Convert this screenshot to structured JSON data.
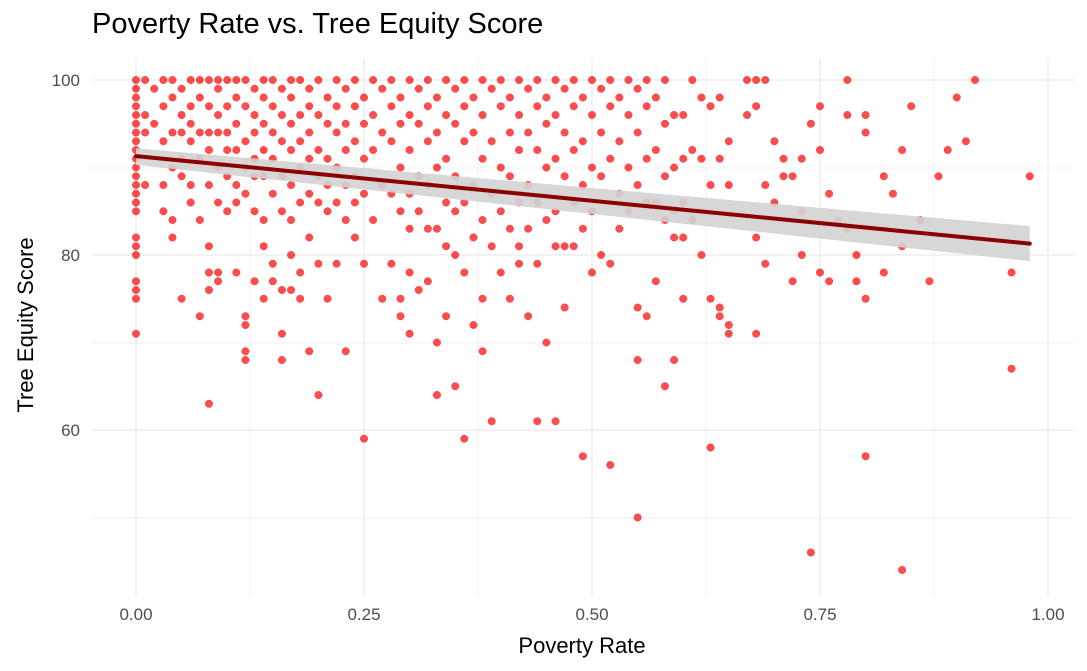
{
  "chart_data": {
    "type": "scatter",
    "title": "Poverty Rate vs. Tree Equity Score",
    "xlabel": "Poverty Rate",
    "ylabel": "Tree Equity Score",
    "xlim": [
      -0.1,
      1.06
    ],
    "ylim": [
      41.5,
      102.5
    ],
    "x_ticks": [
      "0.00",
      "0.25",
      "0.50",
      "0.75",
      "1.00"
    ],
    "y_ticks": [
      "60",
      "80",
      "100"
    ],
    "grid": true,
    "point_color": "#ff0000",
    "trend": {
      "method": "linear",
      "color": "#8b0000",
      "band_color": "#d3d3d3",
      "start": {
        "x": 0.0,
        "y": 91.3,
        "lo": 90.3,
        "hi": 92.2
      },
      "end": {
        "x": 0.98,
        "y": 81.3,
        "lo": 79.3,
        "hi": 83.3
      }
    },
    "points": [
      [
        0,
        100
      ],
      [
        0,
        99
      ],
      [
        0,
        98
      ],
      [
        0,
        97
      ],
      [
        0,
        96
      ],
      [
        0,
        95
      ],
      [
        0,
        94
      ],
      [
        0,
        93
      ],
      [
        0,
        92
      ],
      [
        0,
        91
      ],
      [
        0,
        90
      ],
      [
        0,
        89
      ],
      [
        0,
        88
      ],
      [
        0,
        87
      ],
      [
        0,
        86
      ],
      [
        0,
        85
      ],
      [
        0,
        82
      ],
      [
        0,
        81
      ],
      [
        0,
        80
      ],
      [
        0,
        77
      ],
      [
        0,
        76
      ],
      [
        0,
        75
      ],
      [
        0,
        71
      ],
      [
        0.01,
        100
      ],
      [
        0.01,
        96
      ],
      [
        0.01,
        94
      ],
      [
        0.01,
        88
      ],
      [
        0.02,
        99
      ],
      [
        0.02,
        95
      ],
      [
        0.03,
        100
      ],
      [
        0.03,
        97
      ],
      [
        0.03,
        93
      ],
      [
        0.03,
        88
      ],
      [
        0.03,
        85
      ],
      [
        0.04,
        100
      ],
      [
        0.04,
        98
      ],
      [
        0.04,
        94
      ],
      [
        0.04,
        90
      ],
      [
        0.04,
        84
      ],
      [
        0.04,
        82
      ],
      [
        0.05,
        99
      ],
      [
        0.05,
        96
      ],
      [
        0.05,
        94
      ],
      [
        0.05,
        91
      ],
      [
        0.05,
        89
      ],
      [
        0.05,
        75
      ],
      [
        0.06,
        100
      ],
      [
        0.06,
        97
      ],
      [
        0.06,
        95
      ],
      [
        0.06,
        93
      ],
      [
        0.06,
        88
      ],
      [
        0.06,
        86
      ],
      [
        0.07,
        100
      ],
      [
        0.07,
        98
      ],
      [
        0.07,
        94
      ],
      [
        0.07,
        91
      ],
      [
        0.07,
        84
      ],
      [
        0.07,
        73
      ],
      [
        0.08,
        100
      ],
      [
        0.08,
        97
      ],
      [
        0.08,
        94
      ],
      [
        0.08,
        92
      ],
      [
        0.08,
        88
      ],
      [
        0.08,
        81
      ],
      [
        0.08,
        78
      ],
      [
        0.08,
        76
      ],
      [
        0.08,
        63
      ],
      [
        0.09,
        100
      ],
      [
        0.09,
        99
      ],
      [
        0.09,
        96
      ],
      [
        0.09,
        94
      ],
      [
        0.09,
        90
      ],
      [
        0.09,
        86
      ],
      [
        0.09,
        78
      ],
      [
        0.09,
        77
      ],
      [
        0.1,
        100
      ],
      [
        0.1,
        97
      ],
      [
        0.1,
        94
      ],
      [
        0.1,
        92
      ],
      [
        0.1,
        89
      ],
      [
        0.1,
        85
      ],
      [
        0.11,
        100
      ],
      [
        0.11,
        98
      ],
      [
        0.11,
        95
      ],
      [
        0.11,
        92
      ],
      [
        0.11,
        88
      ],
      [
        0.11,
        86
      ],
      [
        0.11,
        78
      ],
      [
        0.12,
        100
      ],
      [
        0.12,
        97
      ],
      [
        0.12,
        93
      ],
      [
        0.12,
        90
      ],
      [
        0.12,
        87
      ],
      [
        0.12,
        73
      ],
      [
        0.12,
        72
      ],
      [
        0.12,
        69
      ],
      [
        0.12,
        68
      ],
      [
        0.13,
        99
      ],
      [
        0.13,
        96
      ],
      [
        0.13,
        94
      ],
      [
        0.13,
        91
      ],
      [
        0.13,
        89
      ],
      [
        0.13,
        85
      ],
      [
        0.13,
        77
      ],
      [
        0.14,
        100
      ],
      [
        0.14,
        98
      ],
      [
        0.14,
        95
      ],
      [
        0.14,
        92
      ],
      [
        0.14,
        89
      ],
      [
        0.14,
        84
      ],
      [
        0.14,
        81
      ],
      [
        0.14,
        75
      ],
      [
        0.15,
        100
      ],
      [
        0.15,
        97
      ],
      [
        0.15,
        94
      ],
      [
        0.15,
        91
      ],
      [
        0.15,
        87
      ],
      [
        0.15,
        79
      ],
      [
        0.15,
        77
      ],
      [
        0.16,
        99
      ],
      [
        0.16,
        96
      ],
      [
        0.16,
        93
      ],
      [
        0.16,
        89
      ],
      [
        0.16,
        85
      ],
      [
        0.16,
        76
      ],
      [
        0.16,
        71
      ],
      [
        0.16,
        68
      ],
      [
        0.17,
        100
      ],
      [
        0.17,
        98
      ],
      [
        0.17,
        95
      ],
      [
        0.17,
        92
      ],
      [
        0.17,
        88
      ],
      [
        0.17,
        84
      ],
      [
        0.17,
        80
      ],
      [
        0.17,
        76
      ],
      [
        0.18,
        100
      ],
      [
        0.18,
        96
      ],
      [
        0.18,
        93
      ],
      [
        0.18,
        90
      ],
      [
        0.18,
        86
      ],
      [
        0.18,
        78
      ],
      [
        0.18,
        75
      ],
      [
        0.19,
        99
      ],
      [
        0.19,
        97
      ],
      [
        0.19,
        94
      ],
      [
        0.19,
        91
      ],
      [
        0.19,
        87
      ],
      [
        0.19,
        82
      ],
      [
        0.19,
        69
      ],
      [
        0.2,
        100
      ],
      [
        0.2,
        96
      ],
      [
        0.2,
        92
      ],
      [
        0.2,
        89
      ],
      [
        0.2,
        86
      ],
      [
        0.2,
        79
      ],
      [
        0.2,
        64
      ],
      [
        0.21,
        98
      ],
      [
        0.21,
        95
      ],
      [
        0.21,
        91
      ],
      [
        0.21,
        88
      ],
      [
        0.21,
        85
      ],
      [
        0.21,
        75
      ],
      [
        0.22,
        100
      ],
      [
        0.22,
        97
      ],
      [
        0.22,
        94
      ],
      [
        0.22,
        90
      ],
      [
        0.22,
        86
      ],
      [
        0.22,
        79
      ],
      [
        0.23,
        99
      ],
      [
        0.23,
        95
      ],
      [
        0.23,
        92
      ],
      [
        0.23,
        88
      ],
      [
        0.23,
        84
      ],
      [
        0.23,
        69
      ],
      [
        0.24,
        100
      ],
      [
        0.24,
        97
      ],
      [
        0.24,
        93
      ],
      [
        0.24,
        89
      ],
      [
        0.24,
        86
      ],
      [
        0.24,
        82
      ],
      [
        0.25,
        98
      ],
      [
        0.25,
        95
      ],
      [
        0.25,
        91
      ],
      [
        0.25,
        87
      ],
      [
        0.25,
        79
      ],
      [
        0.25,
        59
      ],
      [
        0.26,
        100
      ],
      [
        0.26,
        96
      ],
      [
        0.26,
        92
      ],
      [
        0.26,
        84
      ],
      [
        0.27,
        99
      ],
      [
        0.27,
        94
      ],
      [
        0.27,
        88
      ],
      [
        0.27,
        75
      ],
      [
        0.28,
        100
      ],
      [
        0.28,
        97
      ],
      [
        0.28,
        93
      ],
      [
        0.28,
        87
      ],
      [
        0.28,
        79
      ],
      [
        0.29,
        98
      ],
      [
        0.29,
        95
      ],
      [
        0.29,
        90
      ],
      [
        0.29,
        85
      ],
      [
        0.29,
        75
      ],
      [
        0.29,
        73
      ],
      [
        0.3,
        100
      ],
      [
        0.3,
        96
      ],
      [
        0.3,
        92
      ],
      [
        0.3,
        87
      ],
      [
        0.3,
        83
      ],
      [
        0.3,
        78
      ],
      [
        0.3,
        71
      ],
      [
        0.31,
        99
      ],
      [
        0.31,
        95
      ],
      [
        0.31,
        89
      ],
      [
        0.31,
        85
      ],
      [
        0.31,
        76
      ],
      [
        0.32,
        100
      ],
      [
        0.32,
        97
      ],
      [
        0.32,
        93
      ],
      [
        0.32,
        88
      ],
      [
        0.32,
        83
      ],
      [
        0.32,
        77
      ],
      [
        0.33,
        98
      ],
      [
        0.33,
        94
      ],
      [
        0.33,
        90
      ],
      [
        0.33,
        83
      ],
      [
        0.33,
        70
      ],
      [
        0.33,
        64
      ],
      [
        0.34,
        100
      ],
      [
        0.34,
        96
      ],
      [
        0.34,
        91
      ],
      [
        0.34,
        86
      ],
      [
        0.34,
        81
      ],
      [
        0.34,
        73
      ],
      [
        0.35,
        99
      ],
      [
        0.35,
        95
      ],
      [
        0.35,
        89
      ],
      [
        0.35,
        85
      ],
      [
        0.35,
        80
      ],
      [
        0.35,
        65
      ],
      [
        0.36,
        100
      ],
      [
        0.36,
        97
      ],
      [
        0.36,
        93
      ],
      [
        0.36,
        86
      ],
      [
        0.36,
        78
      ],
      [
        0.36,
        59
      ],
      [
        0.37,
        98
      ],
      [
        0.37,
        94
      ],
      [
        0.37,
        88
      ],
      [
        0.37,
        82
      ],
      [
        0.37,
        72
      ],
      [
        0.38,
        100
      ],
      [
        0.38,
        96
      ],
      [
        0.38,
        91
      ],
      [
        0.38,
        84
      ],
      [
        0.38,
        75
      ],
      [
        0.38,
        69
      ],
      [
        0.39,
        99
      ],
      [
        0.39,
        93
      ],
      [
        0.39,
        87
      ],
      [
        0.39,
        81
      ],
      [
        0.39,
        61
      ],
      [
        0.4,
        100
      ],
      [
        0.4,
        97
      ],
      [
        0.4,
        90
      ],
      [
        0.4,
        85
      ],
      [
        0.4,
        78
      ],
      [
        0.41,
        98
      ],
      [
        0.41,
        94
      ],
      [
        0.41,
        89
      ],
      [
        0.41,
        83
      ],
      [
        0.41,
        75
      ],
      [
        0.42,
        100
      ],
      [
        0.42,
        96
      ],
      [
        0.42,
        92
      ],
      [
        0.42,
        86
      ],
      [
        0.42,
        81
      ],
      [
        0.42,
        79
      ],
      [
        0.43,
        99
      ],
      [
        0.43,
        94
      ],
      [
        0.43,
        88
      ],
      [
        0.43,
        83
      ],
      [
        0.43,
        73
      ],
      [
        0.44,
        100
      ],
      [
        0.44,
        97
      ],
      [
        0.44,
        92
      ],
      [
        0.44,
        86
      ],
      [
        0.44,
        79
      ],
      [
        0.44,
        61
      ],
      [
        0.45,
        98
      ],
      [
        0.45,
        95
      ],
      [
        0.45,
        90
      ],
      [
        0.45,
        84
      ],
      [
        0.45,
        70
      ],
      [
        0.46,
        100
      ],
      [
        0.46,
        96
      ],
      [
        0.46,
        91
      ],
      [
        0.46,
        85
      ],
      [
        0.46,
        81
      ],
      [
        0.46,
        61
      ],
      [
        0.47,
        99
      ],
      [
        0.47,
        94
      ],
      [
        0.47,
        89
      ],
      [
        0.47,
        81
      ],
      [
        0.47,
        74
      ],
      [
        0.48,
        100
      ],
      [
        0.48,
        97
      ],
      [
        0.48,
        92
      ],
      [
        0.48,
        86
      ],
      [
        0.48,
        81
      ],
      [
        0.49,
        98
      ],
      [
        0.49,
        93
      ],
      [
        0.49,
        88
      ],
      [
        0.49,
        83
      ],
      [
        0.49,
        57
      ],
      [
        0.5,
        100
      ],
      [
        0.5,
        96
      ],
      [
        0.5,
        90
      ],
      [
        0.5,
        85
      ],
      [
        0.5,
        78
      ],
      [
        0.51,
        99
      ],
      [
        0.51,
        94
      ],
      [
        0.51,
        89
      ],
      [
        0.51,
        80
      ],
      [
        0.52,
        100
      ],
      [
        0.52,
        97
      ],
      [
        0.52,
        91
      ],
      [
        0.52,
        79
      ],
      [
        0.52,
        56
      ],
      [
        0.53,
        98
      ],
      [
        0.53,
        93
      ],
      [
        0.53,
        87
      ],
      [
        0.53,
        83
      ],
      [
        0.54,
        100
      ],
      [
        0.54,
        96
      ],
      [
        0.54,
        90
      ],
      [
        0.54,
        85
      ],
      [
        0.55,
        99
      ],
      [
        0.55,
        94
      ],
      [
        0.55,
        88
      ],
      [
        0.55,
        74
      ],
      [
        0.55,
        68
      ],
      [
        0.55,
        50
      ],
      [
        0.56,
        100
      ],
      [
        0.56,
        97
      ],
      [
        0.56,
        91
      ],
      [
        0.56,
        86
      ],
      [
        0.56,
        73
      ],
      [
        0.57,
        98
      ],
      [
        0.57,
        92
      ],
      [
        0.57,
        86
      ],
      [
        0.57,
        77
      ],
      [
        0.58,
        100
      ],
      [
        0.58,
        95
      ],
      [
        0.58,
        89
      ],
      [
        0.58,
        84
      ],
      [
        0.58,
        65
      ],
      [
        0.59,
        96
      ],
      [
        0.59,
        90
      ],
      [
        0.59,
        85
      ],
      [
        0.59,
        82
      ],
      [
        0.59,
        68
      ],
      [
        0.6,
        96
      ],
      [
        0.6,
        91
      ],
      [
        0.6,
        86
      ],
      [
        0.6,
        82
      ],
      [
        0.6,
        75
      ],
      [
        0.61,
        100
      ],
      [
        0.61,
        92
      ],
      [
        0.61,
        84
      ],
      [
        0.62,
        98
      ],
      [
        0.62,
        91
      ],
      [
        0.62,
        80
      ],
      [
        0.63,
        97
      ],
      [
        0.63,
        88
      ],
      [
        0.63,
        75
      ],
      [
        0.63,
        58
      ],
      [
        0.64,
        98
      ],
      [
        0.64,
        91
      ],
      [
        0.64,
        74
      ],
      [
        0.64,
        73
      ],
      [
        0.65,
        93
      ],
      [
        0.65,
        88
      ],
      [
        0.65,
        72
      ],
      [
        0.65,
        71
      ],
      [
        0.67,
        100
      ],
      [
        0.67,
        96
      ],
      [
        0.68,
        100
      ],
      [
        0.68,
        97
      ],
      [
        0.68,
        82
      ],
      [
        0.68,
        71
      ],
      [
        0.69,
        100
      ],
      [
        0.69,
        88
      ],
      [
        0.69,
        79
      ],
      [
        0.7,
        93
      ],
      [
        0.7,
        86
      ],
      [
        0.71,
        91
      ],
      [
        0.71,
        89
      ],
      [
        0.72,
        89
      ],
      [
        0.72,
        77
      ],
      [
        0.73,
        91
      ],
      [
        0.73,
        85
      ],
      [
        0.73,
        80
      ],
      [
        0.74,
        95
      ],
      [
        0.74,
        46
      ],
      [
        0.75,
        97
      ],
      [
        0.75,
        92
      ],
      [
        0.75,
        78
      ],
      [
        0.76,
        87
      ],
      [
        0.76,
        77
      ],
      [
        0.77,
        84
      ],
      [
        0.78,
        96
      ],
      [
        0.78,
        100
      ],
      [
        0.78,
        83
      ],
      [
        0.79,
        80
      ],
      [
        0.79,
        77
      ],
      [
        0.8,
        96
      ],
      [
        0.8,
        94
      ],
      [
        0.8,
        75
      ],
      [
        0.8,
        57
      ],
      [
        0.82,
        89
      ],
      [
        0.82,
        78
      ],
      [
        0.83,
        87
      ],
      [
        0.84,
        92
      ],
      [
        0.84,
        81
      ],
      [
        0.84,
        44
      ],
      [
        0.85,
        97
      ],
      [
        0.86,
        84
      ],
      [
        0.87,
        77
      ],
      [
        0.88,
        89
      ],
      [
        0.89,
        92
      ],
      [
        0.9,
        98
      ],
      [
        0.91,
        93
      ],
      [
        0.92,
        100
      ],
      [
        0.96,
        67
      ],
      [
        0.96,
        78
      ],
      [
        0.98,
        89
      ]
    ]
  }
}
